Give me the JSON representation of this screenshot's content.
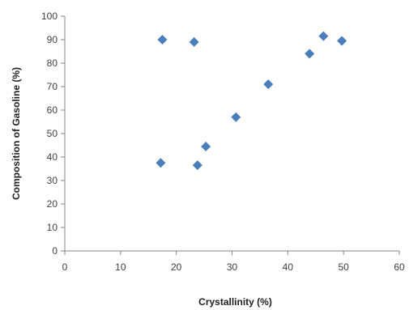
{
  "chart_data": {
    "type": "scatter",
    "title": "",
    "xlabel": "Crystallinity (%)",
    "ylabel": "Composition of Gasoline (%)",
    "xlim": [
      0,
      60
    ],
    "ylim": [
      0,
      100
    ],
    "x_ticks": [
      0,
      10,
      20,
      30,
      40,
      50,
      60
    ],
    "y_ticks": [
      0,
      10,
      20,
      30,
      40,
      50,
      60,
      70,
      80,
      90,
      100
    ],
    "grid": false,
    "legend": "none",
    "marker": "diamond",
    "marker_color": "#4a7ebb",
    "axis_color": "#868686",
    "series": [
      {
        "points": [
          {
            "x": 17.5,
            "y": 90
          },
          {
            "x": 23.2,
            "y": 89
          },
          {
            "x": 17.2,
            "y": 37.5
          },
          {
            "x": 23.8,
            "y": 36.5
          },
          {
            "x": 25.3,
            "y": 44.5
          },
          {
            "x": 30.7,
            "y": 57
          },
          {
            "x": 36.5,
            "y": 71
          },
          {
            "x": 43.9,
            "y": 84
          },
          {
            "x": 46.4,
            "y": 91.5
          },
          {
            "x": 49.7,
            "y": 89.5
          }
        ]
      }
    ]
  }
}
